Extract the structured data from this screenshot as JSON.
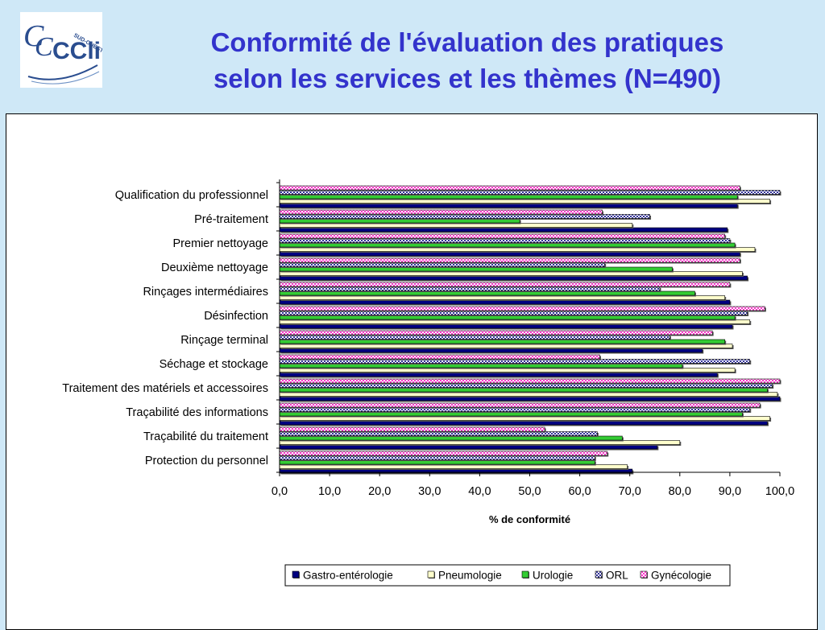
{
  "header": {
    "title_line1": "Conformité de l'évaluation des pratiques",
    "title_line2": "selon les services et les thèmes (N=490)",
    "logo_text": "CClin",
    "logo_subtext": "SUD-OUEST"
  },
  "chart_data": {
    "type": "bar",
    "orientation": "horizontal",
    "categories": [
      "Qualification du professionnel",
      "Pré-traitement",
      "Premier nettoyage",
      "Deuxième nettoyage",
      "Rinçages intermédiaires",
      "Désinfection",
      "Rinçage terminal",
      "Séchage et stockage",
      "Traitement des matériels et accessoires",
      "Traçabilité des informations",
      "Traçabilité du traitement",
      "Protection du personnel"
    ],
    "series": [
      {
        "name": "Gastro-entérologie",
        "color": "#000080",
        "pattern": "solid",
        "values": [
          91.5,
          89.5,
          92.0,
          93.5,
          90.0,
          90.5,
          84.5,
          87.5,
          100.0,
          97.5,
          75.5,
          70.5
        ]
      },
      {
        "name": "Pneumologie",
        "color": "#ffffcc",
        "pattern": "solid",
        "values": [
          98.0,
          70.5,
          95.0,
          92.5,
          89.0,
          94.0,
          90.5,
          91.0,
          99.5,
          98.0,
          80.0,
          69.5
        ]
      },
      {
        "name": "Urologie",
        "color": "#33cc33",
        "pattern": "solid",
        "values": [
          91.5,
          48.0,
          91.0,
          78.5,
          83.0,
          91.0,
          89.0,
          80.5,
          97.5,
          92.5,
          68.5,
          63.0
        ]
      },
      {
        "name": "ORL",
        "color": "#333399",
        "pattern": "checker",
        "values": [
          100.0,
          74.0,
          90.0,
          65.0,
          76.0,
          93.5,
          78.0,
          94.0,
          98.5,
          94.0,
          63.5,
          63.0
        ]
      },
      {
        "name": "Gynécologie",
        "color": "#ff33cc",
        "pattern": "checker",
        "values": [
          92.0,
          64.5,
          89.0,
          92.0,
          90.0,
          97.0,
          86.5,
          64.0,
          100.0,
          96.0,
          53.0,
          65.5
        ]
      }
    ],
    "x_ticks": [
      "0,0",
      "10,0",
      "20,0",
      "30,0",
      "40,0",
      "50,0",
      "60,0",
      "70,0",
      "80,0",
      "90,0",
      "100,0"
    ],
    "xlim": [
      0,
      100
    ],
    "xlabel": "% de conformité",
    "ylabel": "",
    "grid": false,
    "legend_position": "bottom"
  }
}
